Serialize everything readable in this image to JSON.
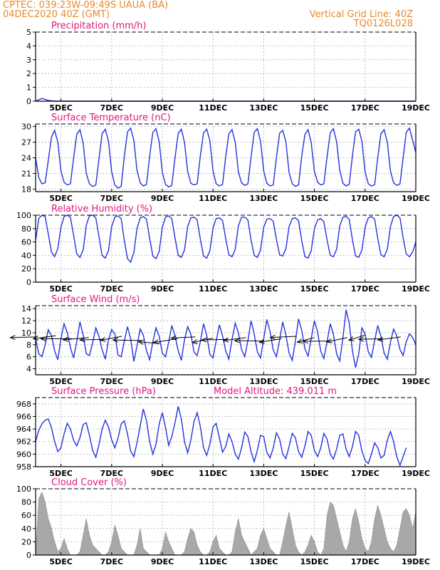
{
  "header": {
    "left_line1": "CPTEC:   039:23W-09:49S   UAUA (BA)",
    "left_line2": "04DEC2020 40Z (GMT)",
    "right_line1": "Vertical Grid Line: 40Z",
    "right_line2": "TQ0126L028"
  },
  "colors": {
    "header": "#e8892b",
    "title": "#e0187c",
    "series": "#2233dd",
    "cloud_fill": "#a8a8a8",
    "grid": "#999999",
    "wind_arrow": "#000000",
    "precip_bar": "#2233dd"
  },
  "chart_data": [
    {
      "id": "precip",
      "type": "line",
      "title": "Precipitation (mm/h)",
      "xlabel": "",
      "ylabel": "Precipitation (mm/h)",
      "x_range": [
        4.0,
        19.0
      ],
      "x_ticks": [
        5,
        7,
        9,
        11,
        13,
        15,
        17,
        19
      ],
      "x_tick_labels": [
        "5DEC",
        "7DEC",
        "9DEC",
        "11DEC",
        "13DEC",
        "15DEC",
        "17DEC",
        "19DEC"
      ],
      "ylim": [
        0,
        5
      ],
      "y_ticks": [
        0,
        1,
        2,
        3,
        4,
        5
      ],
      "y_tick_labels": [
        "0",
        "1",
        "2",
        "3",
        "4",
        "5"
      ],
      "grid": true,
      "series": [
        {
          "name": "Precipitation (mm/h)",
          "x_start": 4.0,
          "x_step": 0.25,
          "values": [
            0,
            0.2,
            0.05,
            0,
            0,
            0,
            0,
            0,
            0,
            0,
            0,
            0,
            0,
            0,
            0,
            0,
            0,
            0,
            0,
            0,
            0,
            0,
            0,
            0,
            0,
            0,
            0,
            0,
            0,
            0,
            0,
            0,
            0,
            0,
            0,
            0,
            0,
            0,
            0,
            0,
            0,
            0,
            0,
            0,
            0,
            0,
            0,
            0,
            0,
            0,
            0,
            0,
            0,
            0,
            0,
            0,
            0,
            0,
            0,
            0,
            0
          ]
        }
      ]
    },
    {
      "id": "temperature",
      "type": "line",
      "title": "Surface Temperature (nC)",
      "xlabel": "",
      "ylabel": "Surface Temperature (nC)",
      "x_range": [
        4.0,
        19.0
      ],
      "x_ticks": [
        5,
        7,
        9,
        11,
        13,
        15,
        17,
        19
      ],
      "x_tick_labels": [
        "5DEC",
        "7DEC",
        "9DEC",
        "11DEC",
        "13DEC",
        "15DEC",
        "17DEC",
        "19DEC"
      ],
      "ylim": [
        17.5,
        30.5
      ],
      "y_ticks": [
        18,
        21,
        24,
        27,
        30
      ],
      "y_tick_labels": [
        "18",
        "21",
        "24",
        "27",
        "30"
      ],
      "grid": true,
      "series": [
        {
          "name": "Surface Temperature (nC)",
          "x_start": 4.0,
          "x_step": 0.125,
          "values": [
            24.0,
            20.2,
            19.0,
            19.2,
            23.5,
            28.0,
            29.3,
            27.0,
            21.5,
            19.3,
            18.8,
            19.0,
            24.0,
            28.5,
            29.4,
            26.8,
            21.0,
            19.0,
            18.5,
            18.8,
            23.8,
            28.6,
            29.5,
            27.2,
            21.3,
            18.8,
            18.2,
            18.5,
            24.2,
            29.0,
            29.7,
            27.4,
            21.6,
            19.2,
            18.6,
            18.9,
            24.3,
            28.9,
            29.6,
            27.1,
            21.2,
            18.9,
            18.4,
            18.7,
            24.0,
            28.7,
            29.5,
            27.0,
            21.4,
            19.1,
            18.8,
            19.0,
            24.4,
            28.8,
            29.5,
            27.3,
            21.5,
            19.0,
            18.6,
            18.9,
            24.2,
            28.6,
            29.4,
            27.0,
            21.3,
            19.2,
            18.7,
            19.0,
            24.1,
            28.9,
            29.6,
            27.2,
            21.5,
            19.1,
            18.6,
            18.8,
            24.0,
            28.7,
            29.3,
            27.0,
            21.2,
            19.0,
            18.5,
            18.8,
            24.3,
            28.5,
            29.4,
            26.9,
            21.4,
            19.3,
            18.8,
            19.0,
            24.2,
            28.8,
            29.6,
            27.1,
            21.6,
            19.1,
            18.6,
            18.9,
            24.4,
            29.0,
            29.5,
            27.2,
            21.3,
            19.0,
            18.6,
            18.8,
            24.1,
            28.6,
            29.4,
            27.0,
            21.5,
            19.2,
            18.7,
            19.0,
            24.0,
            28.9,
            29.7,
            27.4,
            25.0
          ]
        }
      ]
    },
    {
      "id": "humidity",
      "type": "line",
      "title": "Relative Humidity (%)",
      "xlabel": "",
      "ylabel": "Relative Humidity (%)",
      "x_range": [
        4.0,
        19.0
      ],
      "x_ticks": [
        5,
        7,
        9,
        11,
        13,
        15,
        17,
        19
      ],
      "x_tick_labels": [
        "5DEC",
        "7DEC",
        "9DEC",
        "11DEC",
        "13DEC",
        "15DEC",
        "17DEC",
        "19DEC"
      ],
      "ylim": [
        0,
        100
      ],
      "y_ticks": [
        0,
        20,
        40,
        60,
        80,
        100
      ],
      "y_tick_labels": [
        "0",
        "20",
        "40",
        "60",
        "80",
        "100"
      ],
      "grid": true,
      "series": [
        {
          "name": "Relative Humidity (%)",
          "x_start": 4.0,
          "x_step": 0.125,
          "values": [
            62,
            95,
            100,
            98,
            72,
            45,
            38,
            50,
            82,
            98,
            100,
            97,
            70,
            42,
            37,
            48,
            85,
            99,
            100,
            96,
            68,
            40,
            36,
            47,
            83,
            97,
            99,
            95,
            62,
            35,
            30,
            44,
            80,
            96,
            98,
            94,
            65,
            39,
            35,
            46,
            82,
            97,
            99,
            95,
            66,
            40,
            37,
            48,
            83,
            96,
            97,
            93,
            64,
            39,
            36,
            47,
            81,
            95,
            96,
            92,
            65,
            41,
            38,
            49,
            84,
            97,
            97,
            93,
            63,
            40,
            37,
            48,
            82,
            94,
            95,
            91,
            64,
            41,
            39,
            50,
            83,
            95,
            96,
            92,
            62,
            38,
            36,
            47,
            80,
            93,
            95,
            90,
            63,
            40,
            38,
            49,
            84,
            97,
            98,
            94,
            63,
            39,
            37,
            48,
            82,
            96,
            98,
            94,
            65,
            41,
            38,
            49,
            83,
            98,
            100,
            96,
            66,
            42,
            38,
            45,
            60
          ]
        }
      ]
    },
    {
      "id": "wind",
      "type": "line",
      "title": "Surface Wind (m/s)",
      "xlabel": "",
      "ylabel": "Surface Wind (m/s)",
      "x_range": [
        4.0,
        19.0
      ],
      "x_ticks": [
        5,
        7,
        9,
        11,
        13,
        15,
        17,
        19
      ],
      "x_tick_labels": [
        "5DEC",
        "7DEC",
        "9DEC",
        "11DEC",
        "13DEC",
        "15DEC",
        "17DEC",
        "19DEC"
      ],
      "ylim": [
        3,
        14.5
      ],
      "y_ticks": [
        4,
        6,
        8,
        10,
        12,
        14
      ],
      "y_tick_labels": [
        "4",
        "6",
        "8",
        "10",
        "12",
        "14"
      ],
      "grid": true,
      "arrow_note": "black wind vectors, mostly pointing west-northwest",
      "series": [
        {
          "name": "Surface Wind (m/s)",
          "x_start": 4.0,
          "x_step": 0.125,
          "values": [
            9.0,
            6.5,
            6.0,
            8.0,
            10.5,
            9.5,
            7.0,
            5.5,
            9.0,
            11.5,
            10.0,
            7.5,
            5.8,
            8.5,
            11.8,
            9.6,
            6.5,
            6.2,
            8.3,
            10.8,
            9.4,
            7.2,
            5.6,
            8.8,
            10.5,
            9.8,
            6.3,
            6.0,
            8.6,
            11.0,
            9.0,
            5.2,
            7.8,
            10.6,
            9.6,
            7.0,
            5.5,
            8.5,
            10.8,
            9.4,
            6.6,
            6.0,
            8.4,
            11.2,
            9.5,
            7.0,
            5.4,
            8.8,
            11.0,
            9.8,
            6.8,
            6.2,
            8.5,
            11.5,
            9.6,
            6.4,
            5.8,
            8.6,
            11.3,
            9.5,
            7.0,
            5.6,
            8.9,
            11.6,
            10.0,
            7.2,
            6.0,
            8.7,
            12.0,
            9.8,
            6.8,
            5.8,
            9.0,
            12.2,
            10.2,
            7.1,
            6.0,
            8.8,
            11.8,
            9.6,
            6.6,
            5.4,
            8.6,
            12.3,
            10.4,
            7.3,
            6.1,
            9.0,
            12.0,
            10.1,
            6.9,
            5.7,
            8.5,
            11.5,
            9.7,
            6.5,
            5.3,
            9.2,
            13.8,
            11.6,
            7.0,
            4.2,
            6.5,
            10.8,
            9.8,
            6.8,
            5.9,
            8.7,
            11.2,
            9.4,
            6.6,
            5.6,
            8.4,
            10.6,
            9.5,
            7.2,
            6.2,
            8.5,
            9.8,
            9.2,
            8.0
          ]
        }
      ]
    },
    {
      "id": "pressure",
      "type": "line",
      "title": "Surface Pressure (hPa)",
      "annotation": "Model Altitude: 439.011 m",
      "xlabel": "",
      "ylabel": "Surface Pressure (hPa)",
      "x_range": [
        4.0,
        19.0
      ],
      "x_ticks": [
        5,
        7,
        9,
        11,
        13,
        15,
        17,
        19
      ],
      "x_tick_labels": [
        "5DEC",
        "7DEC",
        "9DEC",
        "11DEC",
        "13DEC",
        "15DEC",
        "17DEC",
        "19DEC"
      ],
      "ylim": [
        958,
        969
      ],
      "y_ticks": [
        958,
        960,
        962,
        964,
        966,
        968
      ],
      "y_tick_labels": [
        "958",
        "960",
        "962",
        "964",
        "966",
        "968"
      ],
      "grid": true,
      "series": [
        {
          "name": "Surface Pressure (hPa)",
          "x_start": 4.0,
          "x_step": 0.125,
          "values": [
            962.0,
            963.8,
            964.8,
            965.4,
            965.6,
            964.2,
            962.0,
            960.4,
            961.0,
            963.2,
            964.9,
            964.0,
            962.2,
            961.3,
            962.6,
            964.7,
            965.0,
            963.0,
            960.6,
            959.5,
            961.5,
            964.0,
            965.4,
            964.3,
            962.3,
            961.0,
            962.5,
            964.8,
            965.3,
            963.2,
            960.5,
            959.6,
            961.8,
            964.5,
            967.2,
            965.3,
            962.0,
            960.0,
            961.6,
            964.8,
            966.6,
            964.2,
            961.4,
            962.8,
            965.0,
            967.6,
            965.6,
            962.0,
            960.2,
            962.2,
            965.2,
            966.6,
            964.4,
            961.0,
            959.8,
            961.6,
            964.3,
            964.9,
            962.6,
            960.3,
            961.2,
            963.2,
            962.0,
            960.0,
            959.2,
            961.0,
            963.5,
            962.8,
            960.4,
            958.8,
            960.6,
            963.0,
            962.8,
            960.3,
            959.4,
            961.0,
            963.4,
            962.4,
            960.0,
            959.3,
            961.2,
            963.3,
            962.6,
            960.4,
            959.5,
            961.3,
            963.6,
            963.0,
            960.6,
            959.6,
            961.0,
            963.3,
            962.4,
            960.0,
            959.2,
            960.8,
            963.0,
            963.2,
            960.8,
            959.6,
            961.2,
            963.6,
            963.0,
            960.5,
            959.0,
            958.5,
            960.0,
            961.8,
            961.0,
            959.4,
            959.8,
            962.2,
            963.6,
            962.0,
            959.6,
            958.2,
            959.6,
            961.0
          ]
        }
      ]
    },
    {
      "id": "cloud",
      "type": "area",
      "title": "Cloud Cover (%)",
      "xlabel": "",
      "ylabel": "Cloud Cover (%)",
      "x_range": [
        4.0,
        19.0
      ],
      "x_ticks": [
        5,
        7,
        9,
        11,
        13,
        15,
        17,
        19
      ],
      "x_tick_labels": [
        "5DEC",
        "7DEC",
        "9DEC",
        "11DEC",
        "13DEC",
        "15DEC",
        "17DEC",
        "19DEC"
      ],
      "ylim": [
        0,
        100
      ],
      "y_ticks": [
        0,
        20,
        40,
        60,
        80,
        100
      ],
      "y_tick_labels": [
        "0",
        "20",
        "40",
        "60",
        "80",
        "100"
      ],
      "grid": true,
      "series": [
        {
          "name": "Cloud Cover (%)",
          "x_start": 4.0,
          "x_step": 0.125,
          "values": [
            0,
            85,
            95,
            80,
            55,
            40,
            20,
            5,
            10,
            25,
            10,
            0,
            0,
            0,
            5,
            30,
            55,
            30,
            15,
            10,
            5,
            0,
            0,
            5,
            20,
            45,
            30,
            10,
            5,
            0,
            0,
            0,
            15,
            40,
            10,
            5,
            0,
            0,
            0,
            0,
            10,
            35,
            20,
            10,
            0,
            0,
            0,
            5,
            25,
            40,
            35,
            15,
            5,
            0,
            0,
            5,
            20,
            30,
            10,
            5,
            0,
            0,
            5,
            35,
            55,
            30,
            20,
            10,
            0,
            5,
            10,
            30,
            40,
            25,
            10,
            5,
            0,
            0,
            20,
            45,
            65,
            40,
            15,
            5,
            0,
            5,
            15,
            30,
            20,
            5,
            0,
            10,
            60,
            80,
            75,
            55,
            35,
            15,
            5,
            20,
            55,
            70,
            50,
            25,
            10,
            5,
            20,
            55,
            75,
            60,
            40,
            20,
            10,
            5,
            15,
            40,
            65,
            70,
            60,
            40,
            65
          ]
        }
      ]
    }
  ]
}
